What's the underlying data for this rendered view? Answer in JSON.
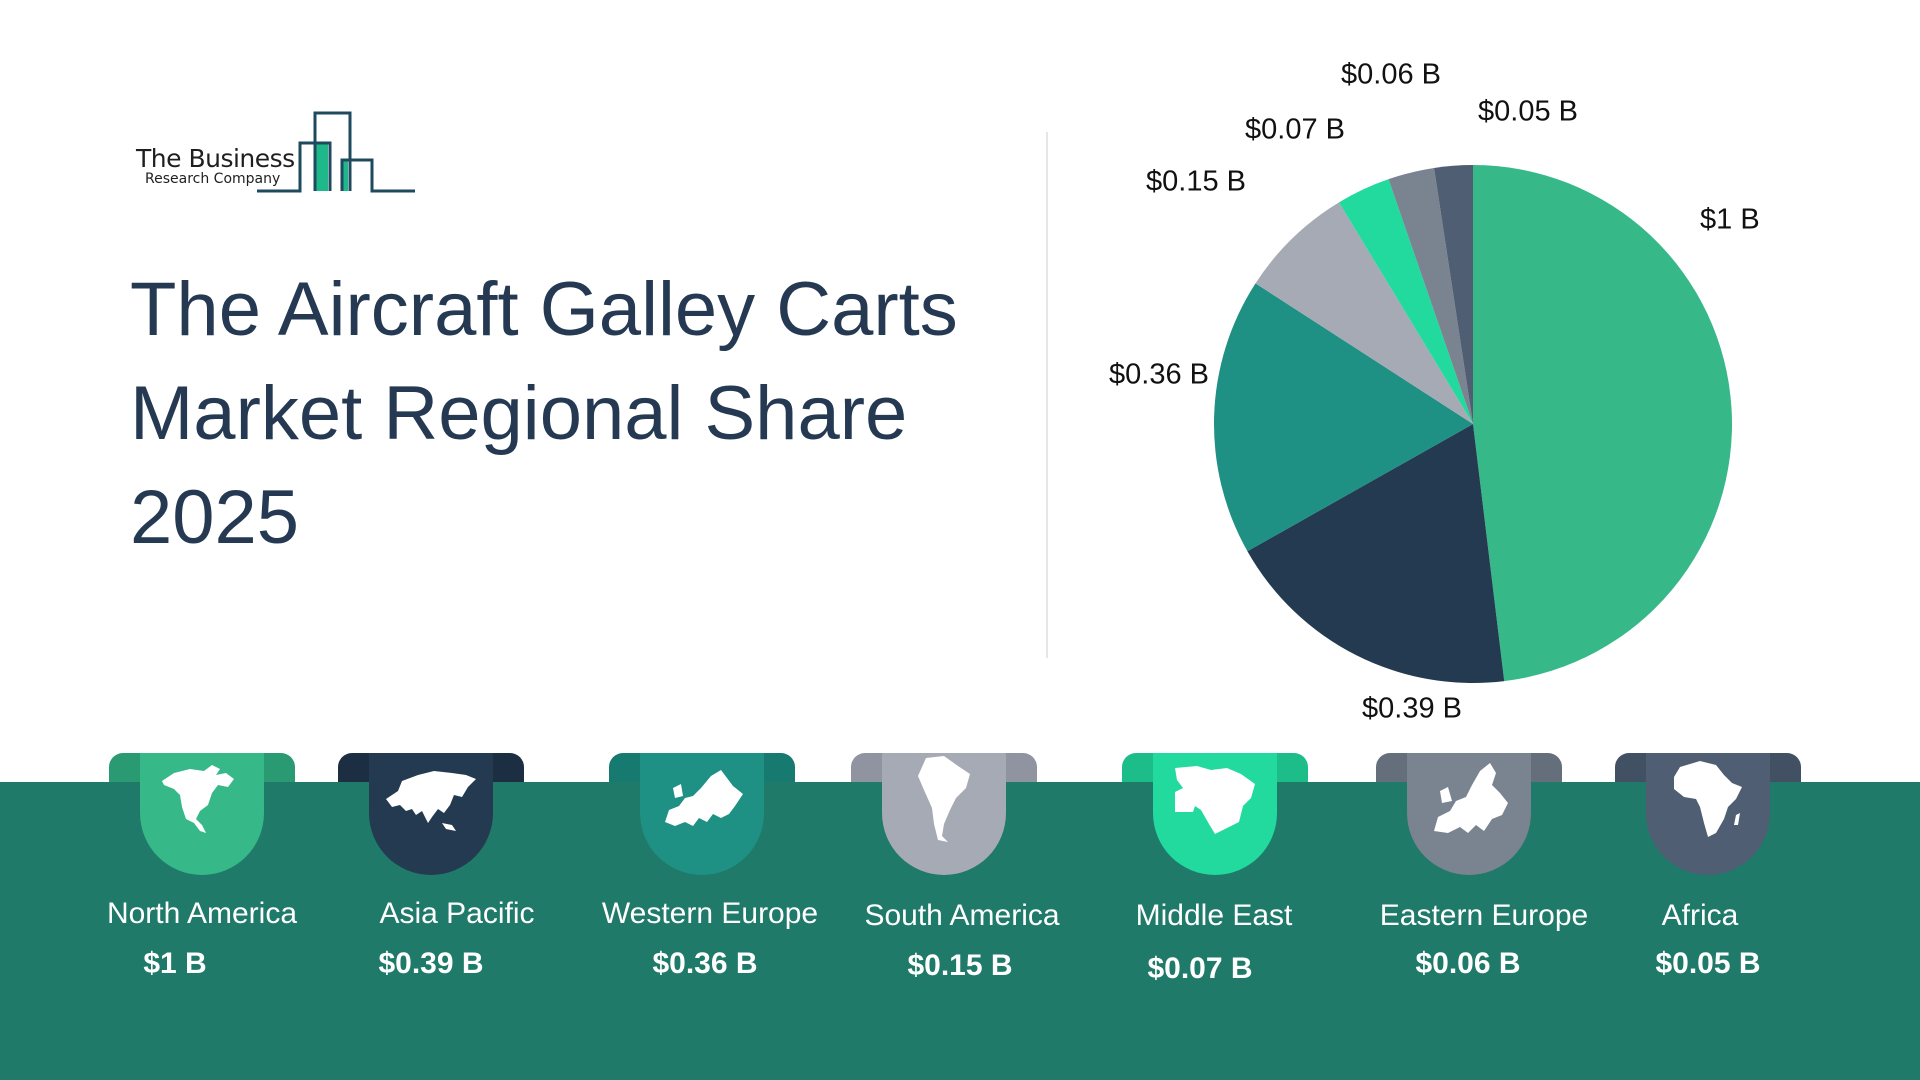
{
  "logo": {
    "line1": "The Business",
    "line2": "Research Company"
  },
  "title": {
    "line1": "The Aircraft Galley Carts",
    "line2": "Market Regional Share",
    "line3": "2025"
  },
  "colors": {
    "band": "#1f7a6a",
    "title": "#253a52",
    "north_america": "#36b889",
    "asia_pacific": "#243a50",
    "western_europe": "#1e9084",
    "south_america": "#a5aab5",
    "middle_east": "#22d99e",
    "eastern_europe": "#7a8490",
    "africa": "#4f5e72"
  },
  "pie_labels": {
    "north_america": "$1 B",
    "asia_pacific": "$0.39 B",
    "western_europe": "$0.36 B",
    "south_america": "$0.15 B",
    "middle_east": "$0.07 B",
    "eastern_europe": "$0.06 B",
    "africa": "$0.05 B"
  },
  "regions": [
    {
      "name": "North America",
      "value": "$1 B",
      "icon": "north-america-map-icon"
    },
    {
      "name": "Asia Pacific",
      "value": "$0.39 B",
      "icon": "asia-map-icon"
    },
    {
      "name": "Western Europe",
      "value": "$0.36 B",
      "icon": "europe-map-icon"
    },
    {
      "name": "South America",
      "value": "$0.15 B",
      "icon": "south-america-map-icon"
    },
    {
      "name": "Middle East",
      "value": "$0.07 B",
      "icon": "middle-east-map-icon"
    },
    {
      "name": "Eastern Europe",
      "value": "$0.06 B",
      "icon": "europe-map-icon"
    },
    {
      "name": "Africa",
      "value": "$0.05 B",
      "icon": "africa-map-icon"
    }
  ],
  "chart_data": {
    "type": "pie",
    "title": "The Aircraft Galley Carts Market Regional Share 2025",
    "categories": [
      "North America",
      "Asia Pacific",
      "Western Europe",
      "South America",
      "Middle East",
      "Eastern Europe",
      "Africa"
    ],
    "values": [
      1.0,
      0.39,
      0.36,
      0.15,
      0.07,
      0.06,
      0.05
    ],
    "unit": "$ B",
    "labels": [
      "$1 B",
      "$0.39 B",
      "$0.36 B",
      "$0.15 B",
      "$0.07 B",
      "$0.06 B",
      "$0.05 B"
    ],
    "colors": [
      "#36b889",
      "#243a50",
      "#1e9084",
      "#a5aab5",
      "#22d99e",
      "#7a8490",
      "#4f5e72"
    ],
    "start_angle": "12 o'clock, clockwise",
    "legend_position": "bottom (region tabs)"
  }
}
